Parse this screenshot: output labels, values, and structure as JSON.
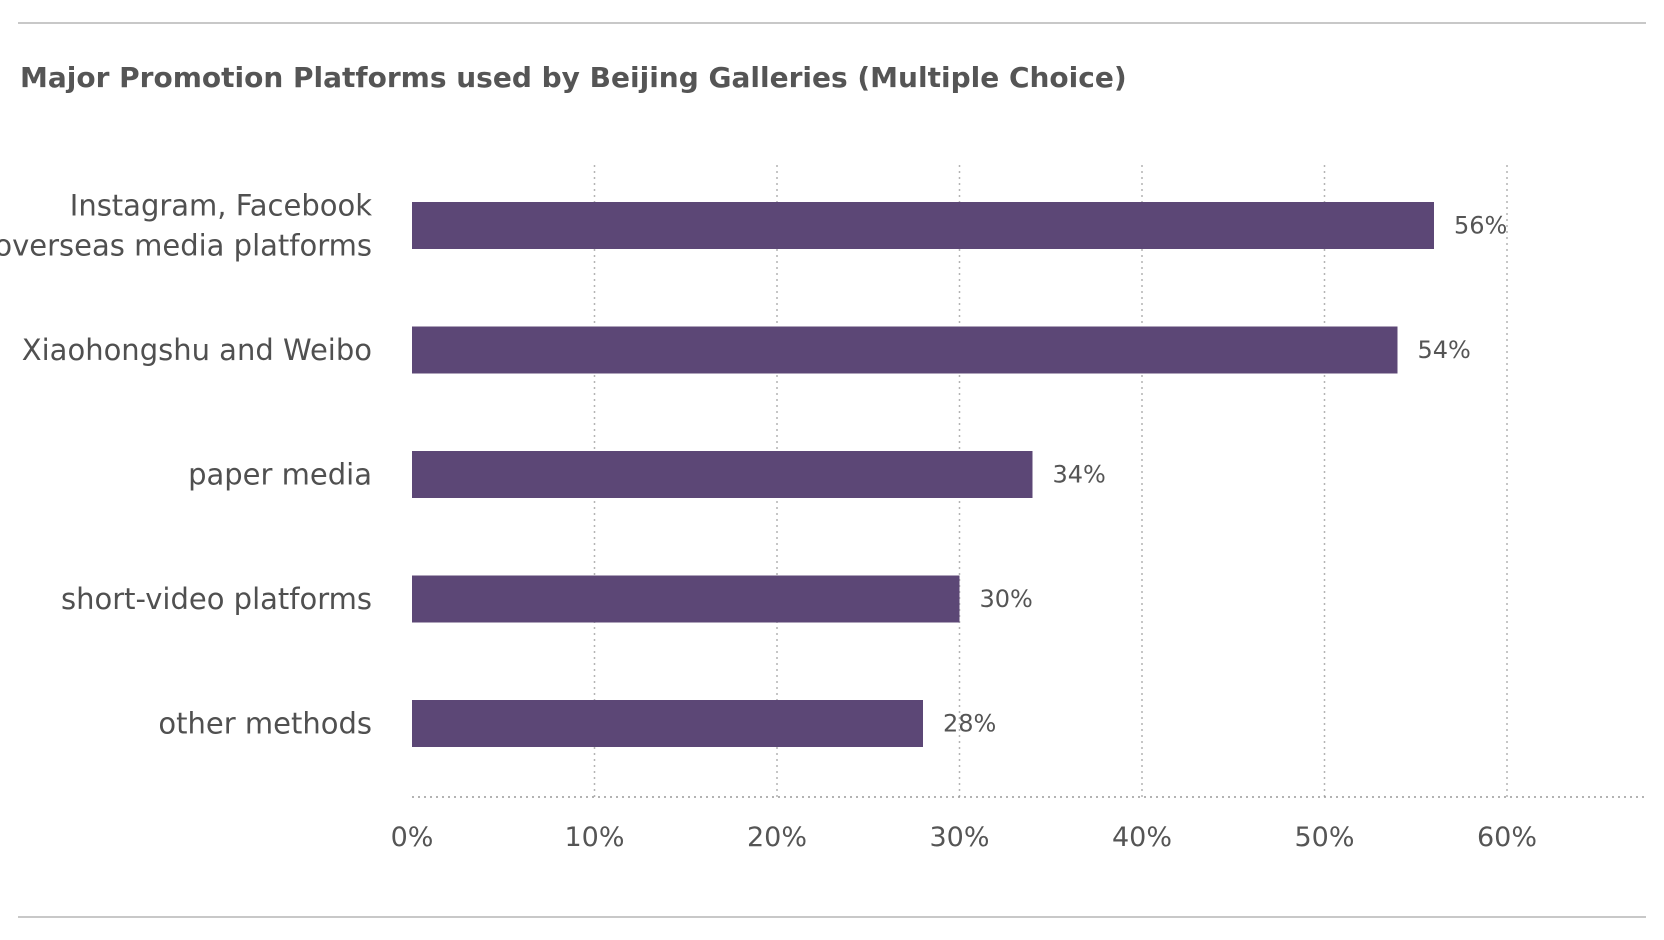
{
  "chart_data": {
    "type": "bar",
    "orientation": "horizontal",
    "title": "Major Promotion Platforms used by Beijing Galleries (Multiple Choice)",
    "xlabel": "",
    "ylabel": "",
    "categories": [
      [
        "Instagram, Facebook",
        "overseas media platforms"
      ],
      [
        "Xiaohongshu and Weibo"
      ],
      [
        "paper media"
      ],
      [
        "short-video platforms"
      ],
      [
        "other methods"
      ]
    ],
    "values": [
      56,
      54,
      34,
      30,
      28
    ],
    "value_labels": [
      "56%",
      "54%",
      "34%",
      "30%",
      "28%"
    ],
    "xlim": [
      0,
      60
    ],
    "xticks": [
      0,
      10,
      20,
      30,
      40,
      50,
      60
    ],
    "xtick_labels": [
      "0%",
      "10%",
      "20%",
      "30%",
      "40%",
      "50%",
      "60%"
    ],
    "grid": "vertical dotted",
    "legend": "none",
    "bar_color": "#5c4776"
  }
}
